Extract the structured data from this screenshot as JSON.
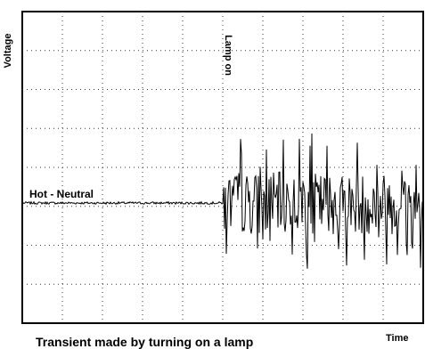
{
  "chart_data": {
    "type": "line",
    "title": "Transient made by turning on a lamp",
    "xlabel": "Time",
    "ylabel": "Voltage",
    "series": [
      {
        "name": "Hot - Neutral",
        "note_event": "Lamp on"
      }
    ],
    "annotations": {
      "event_label": "Lamp on",
      "trace_label": "Hot - Neutral"
    },
    "grid": "on (dotted, 10 x 8 divisions)",
    "trace": {
      "baseline_level": 0.0,
      "pre_event_noise": 0.03,
      "event_fraction": 0.502,
      "post_event_amplitude_range": [
        -1.7,
        1.8
      ]
    }
  }
}
